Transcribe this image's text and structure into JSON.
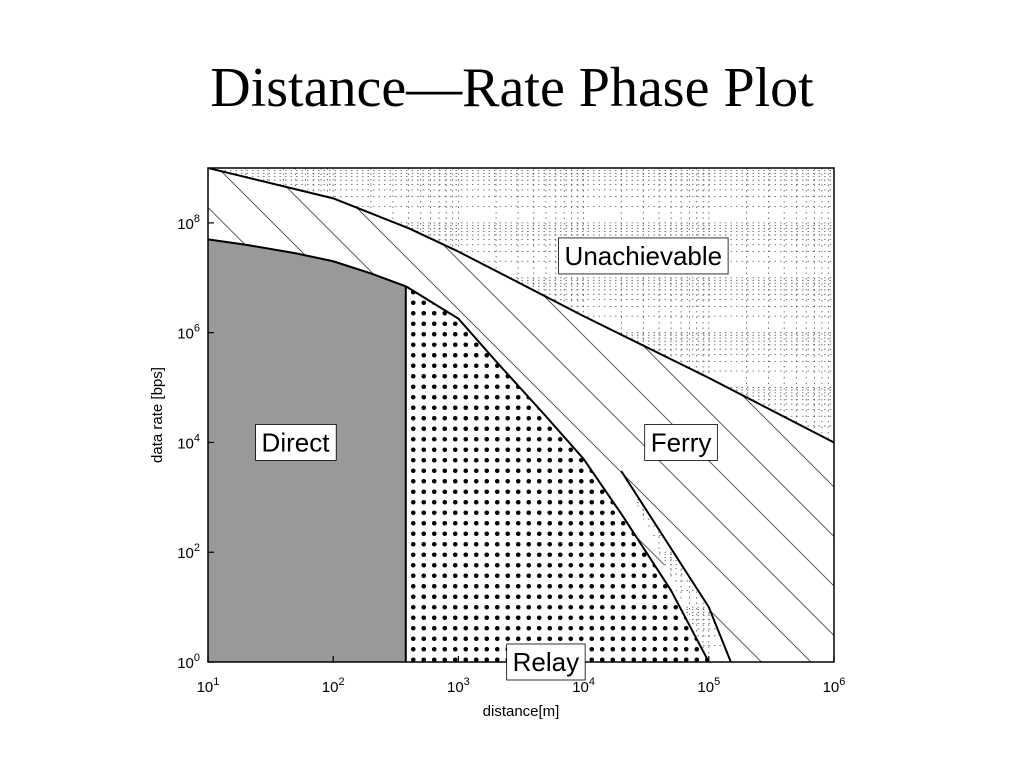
{
  "slide": {
    "title": "Distance—Rate Phase Plot"
  },
  "chart_data": {
    "type": "area",
    "title": "",
    "xlabel": "distance[m]",
    "ylabel": "data rate [bps]",
    "xscale": "log",
    "yscale": "log",
    "xlim": [
      10,
      1000000
    ],
    "ylim": [
      1,
      1000000000
    ],
    "xticks": [
      10,
      100,
      1000,
      10000,
      100000,
      1000000
    ],
    "xtick_labels": [
      {
        "base": "10",
        "exp": "1"
      },
      {
        "base": "10",
        "exp": "2"
      },
      {
        "base": "10",
        "exp": "3"
      },
      {
        "base": "10",
        "exp": "4"
      },
      {
        "base": "10",
        "exp": "5"
      },
      {
        "base": "10",
        "exp": "6"
      }
    ],
    "yticks": [
      1,
      100,
      10000,
      1000000,
      100000000
    ],
    "ytick_labels": [
      {
        "base": "10",
        "exp": "0"
      },
      {
        "base": "10",
        "exp": "2"
      },
      {
        "base": "10",
        "exp": "4"
      },
      {
        "base": "10",
        "exp": "6"
      },
      {
        "base": "10",
        "exp": "8"
      }
    ],
    "grid": true,
    "boundaries": {
      "direct": {
        "x": [
          10,
          20,
          50,
          100,
          200,
          380
        ],
        "y": [
          50000000,
          40000000,
          28000000,
          20000000,
          12000000,
          7000000
        ]
      },
      "direct_max_distance": 380,
      "relay": {
        "x": [
          380,
          1000,
          2000,
          5000,
          10000,
          20000,
          50000,
          100000
        ],
        "y": [
          7000000,
          1800000,
          300000,
          30000,
          5000,
          500,
          20,
          1
        ]
      },
      "ferry": {
        "x": [
          10,
          100,
          400,
          1000,
          10000,
          100000,
          1000000
        ],
        "y": [
          1000000000,
          280000000,
          80000000,
          30000000,
          2000000,
          150000,
          10000
        ]
      },
      "ferry_lower": {
        "x": [
          20000,
          100000,
          150000
        ],
        "y": [
          3000,
          10,
          1
        ]
      }
    },
    "regions": [
      {
        "name": "Direct",
        "pattern": "solid-gray",
        "label_at": [
          50,
          10000
        ]
      },
      {
        "name": "Relay",
        "pattern": "dots",
        "label_at": [
          5000,
          1
        ]
      },
      {
        "name": "Ferry",
        "pattern": "hatch",
        "label_at": [
          60000,
          10000
        ]
      },
      {
        "name": "Unachievable",
        "pattern": "none",
        "label_at": [
          30000,
          25000000
        ]
      }
    ],
    "colors": {
      "direct_fill": "#999999",
      "outline": "#000000",
      "background": "#ffffff",
      "grid": "#555555"
    }
  }
}
